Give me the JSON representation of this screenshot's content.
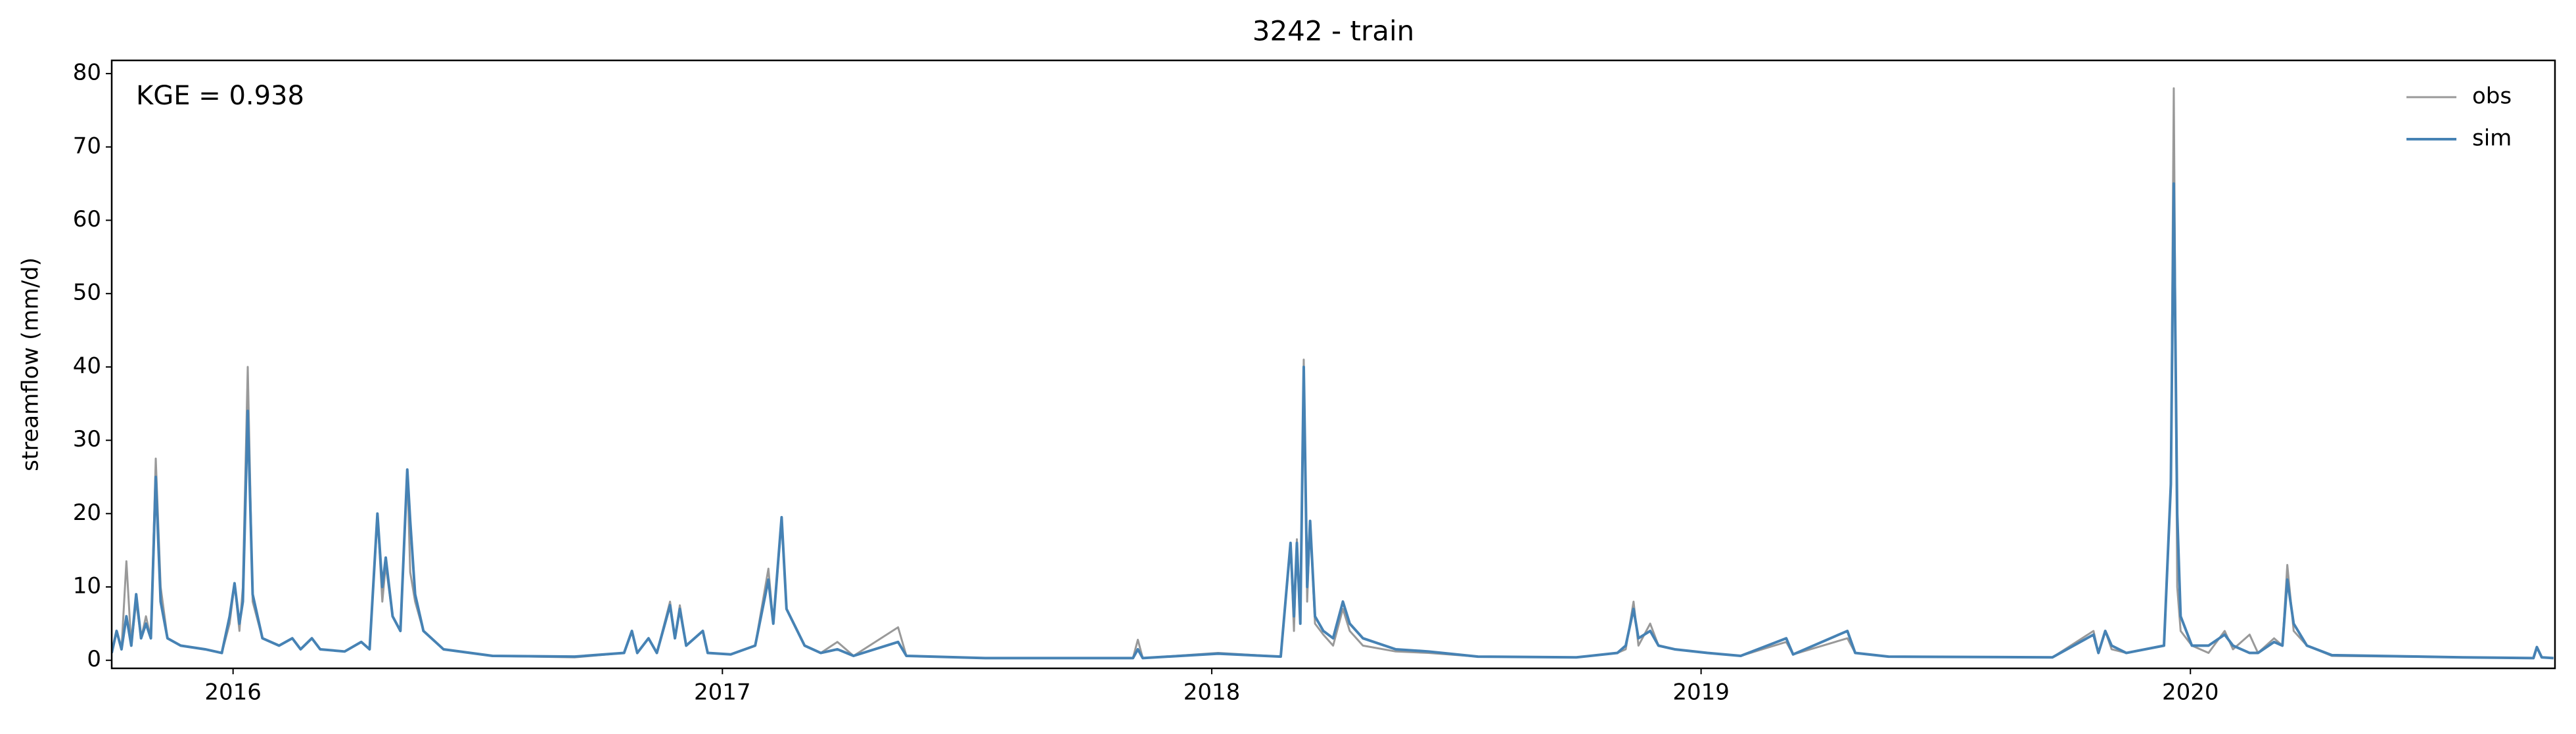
{
  "chart_data": {
    "type": "line",
    "title": "3242 - train",
    "ylabel": "streamflow (mm/d)",
    "annotation": "KGE = 0.938",
    "x": [
      2015.752,
      2015.762,
      2015.772,
      2015.782,
      2015.792,
      2015.802,
      2015.812,
      2015.822,
      2015.832,
      2015.842,
      2015.852,
      2015.866,
      2015.893,
      2015.943,
      2015.977,
      2015.993,
      2016.003,
      2016.013,
      2016.02,
      2016.03,
      2016.04,
      2016.06,
      2016.094,
      2016.121,
      2016.138,
      2016.161,
      2016.178,
      2016.228,
      2016.262,
      2016.279,
      2016.295,
      2016.305,
      2016.312,
      2016.326,
      2016.342,
      2016.356,
      2016.362,
      2016.372,
      2016.389,
      2016.43,
      2016.53,
      2016.698,
      2016.799,
      2016.815,
      2016.826,
      2016.849,
      2016.866,
      2016.893,
      2016.903,
      2016.913,
      2016.926,
      2016.96,
      2016.97,
      2017.017,
      2017.067,
      2017.094,
      2017.104,
      2017.121,
      2017.131,
      2017.168,
      2017.201,
      2017.235,
      2017.268,
      2017.359,
      2017.376,
      2017.537,
      2017.839,
      2017.849,
      2017.859,
      2018.013,
      2018.141,
      2018.161,
      2018.168,
      2018.174,
      2018.181,
      2018.188,
      2018.195,
      2018.201,
      2018.211,
      2018.228,
      2018.248,
      2018.268,
      2018.282,
      2018.309,
      2018.376,
      2018.443,
      2018.544,
      2018.745,
      2018.829,
      2018.846,
      2018.862,
      2018.872,
      2018.896,
      2018.913,
      2018.946,
      2019.013,
      2019.081,
      2019.174,
      2019.188,
      2019.299,
      2019.315,
      2019.383,
      2019.718,
      2019.802,
      2019.812,
      2019.826,
      2019.839,
      2019.869,
      2019.946,
      2019.96,
      2019.966,
      2019.973,
      2019.98,
      2020.003,
      2020.037,
      2020.07,
      2020.087,
      2020.121,
      2020.138,
      2020.171,
      2020.188,
      2020.198,
      2020.211,
      2020.238,
      2020.289,
      2020.557,
      2020.701,
      2020.708,
      2020.718,
      2020.742
    ],
    "series": [
      {
        "name": "obs",
        "color": "#999999",
        "values": [
          1,
          4,
          1.5,
          13.5,
          2,
          8,
          3,
          6,
          3,
          27.5,
          10,
          3,
          2,
          1.5,
          1,
          5,
          10.5,
          4,
          10,
          40,
          8,
          3,
          2,
          3,
          1.5,
          3,
          1.5,
          1.2,
          2.5,
          1.5,
          20,
          8,
          13,
          6,
          4,
          26,
          12,
          8,
          4,
          1.5,
          0.6,
          0.4,
          1,
          4,
          1,
          3,
          1,
          8,
          3,
          7.5,
          2,
          4,
          1,
          0.8,
          2,
          12.5,
          5,
          19,
          7,
          2,
          1,
          2.5,
          0.6,
          4.5,
          0.6,
          0.3,
          0.3,
          2.8,
          0.3,
          1,
          0.5,
          16,
          4,
          16.5,
          5,
          41,
          8,
          19,
          5,
          3.5,
          2,
          7,
          4,
          2,
          1.2,
          1,
          0.5,
          0.4,
          1,
          1.5,
          8,
          2,
          5,
          2,
          1.5,
          1,
          0.6,
          2.5,
          0.8,
          3,
          1,
          0.5,
          0.4,
          4,
          1,
          4,
          1.5,
          1,
          2,
          24,
          78,
          10,
          4,
          2,
          1,
          4,
          1.5,
          3.5,
          1,
          3,
          2,
          13,
          4,
          2,
          0.6,
          0.4,
          0.3,
          1.8,
          0.4,
          0.3
        ]
      },
      {
        "name": "sim",
        "color": "#4682b4",
        "values": [
          1,
          4,
          1.5,
          6,
          2,
          9,
          3,
          5,
          3,
          25,
          8,
          3,
          2,
          1.5,
          1,
          6,
          10.5,
          5,
          8,
          34,
          9,
          3,
          2,
          3,
          1.5,
          3,
          1.5,
          1.2,
          2.5,
          1.5,
          20,
          10,
          14,
          6,
          4,
          26,
          19,
          9,
          4,
          1.5,
          0.6,
          0.5,
          1,
          4,
          1,
          3,
          1,
          7.5,
          3,
          7,
          2,
          4,
          1,
          0.8,
          2,
          11,
          5,
          19.5,
          7,
          2,
          1,
          1.5,
          0.6,
          2.5,
          0.6,
          0.3,
          0.3,
          1.5,
          0.3,
          0.9,
          0.5,
          16,
          6,
          16,
          5,
          40,
          10,
          19,
          6,
          4,
          3,
          8,
          5,
          3,
          1.5,
          1.2,
          0.5,
          0.4,
          1,
          2,
          7,
          3,
          4,
          2,
          1.5,
          1,
          0.6,
          3,
          0.8,
          4,
          1,
          0.5,
          0.4,
          3.5,
          1,
          4,
          2,
          1,
          2,
          24,
          65,
          20,
          6,
          2,
          2,
          3.5,
          2,
          1,
          1,
          2.5,
          2,
          11,
          5,
          2,
          0.7,
          0.4,
          0.3,
          1.8,
          0.4,
          0.3
        ]
      }
    ],
    "xlim": [
      2015.752,
      2020.745
    ],
    "xticks": [
      2016,
      2017,
      2018,
      2019,
      2020
    ],
    "ylim": [
      -1.1,
      81.8
    ],
    "yticks": [
      0,
      10,
      20,
      30,
      40,
      50,
      60,
      70,
      80
    ],
    "legend": "upper right"
  }
}
